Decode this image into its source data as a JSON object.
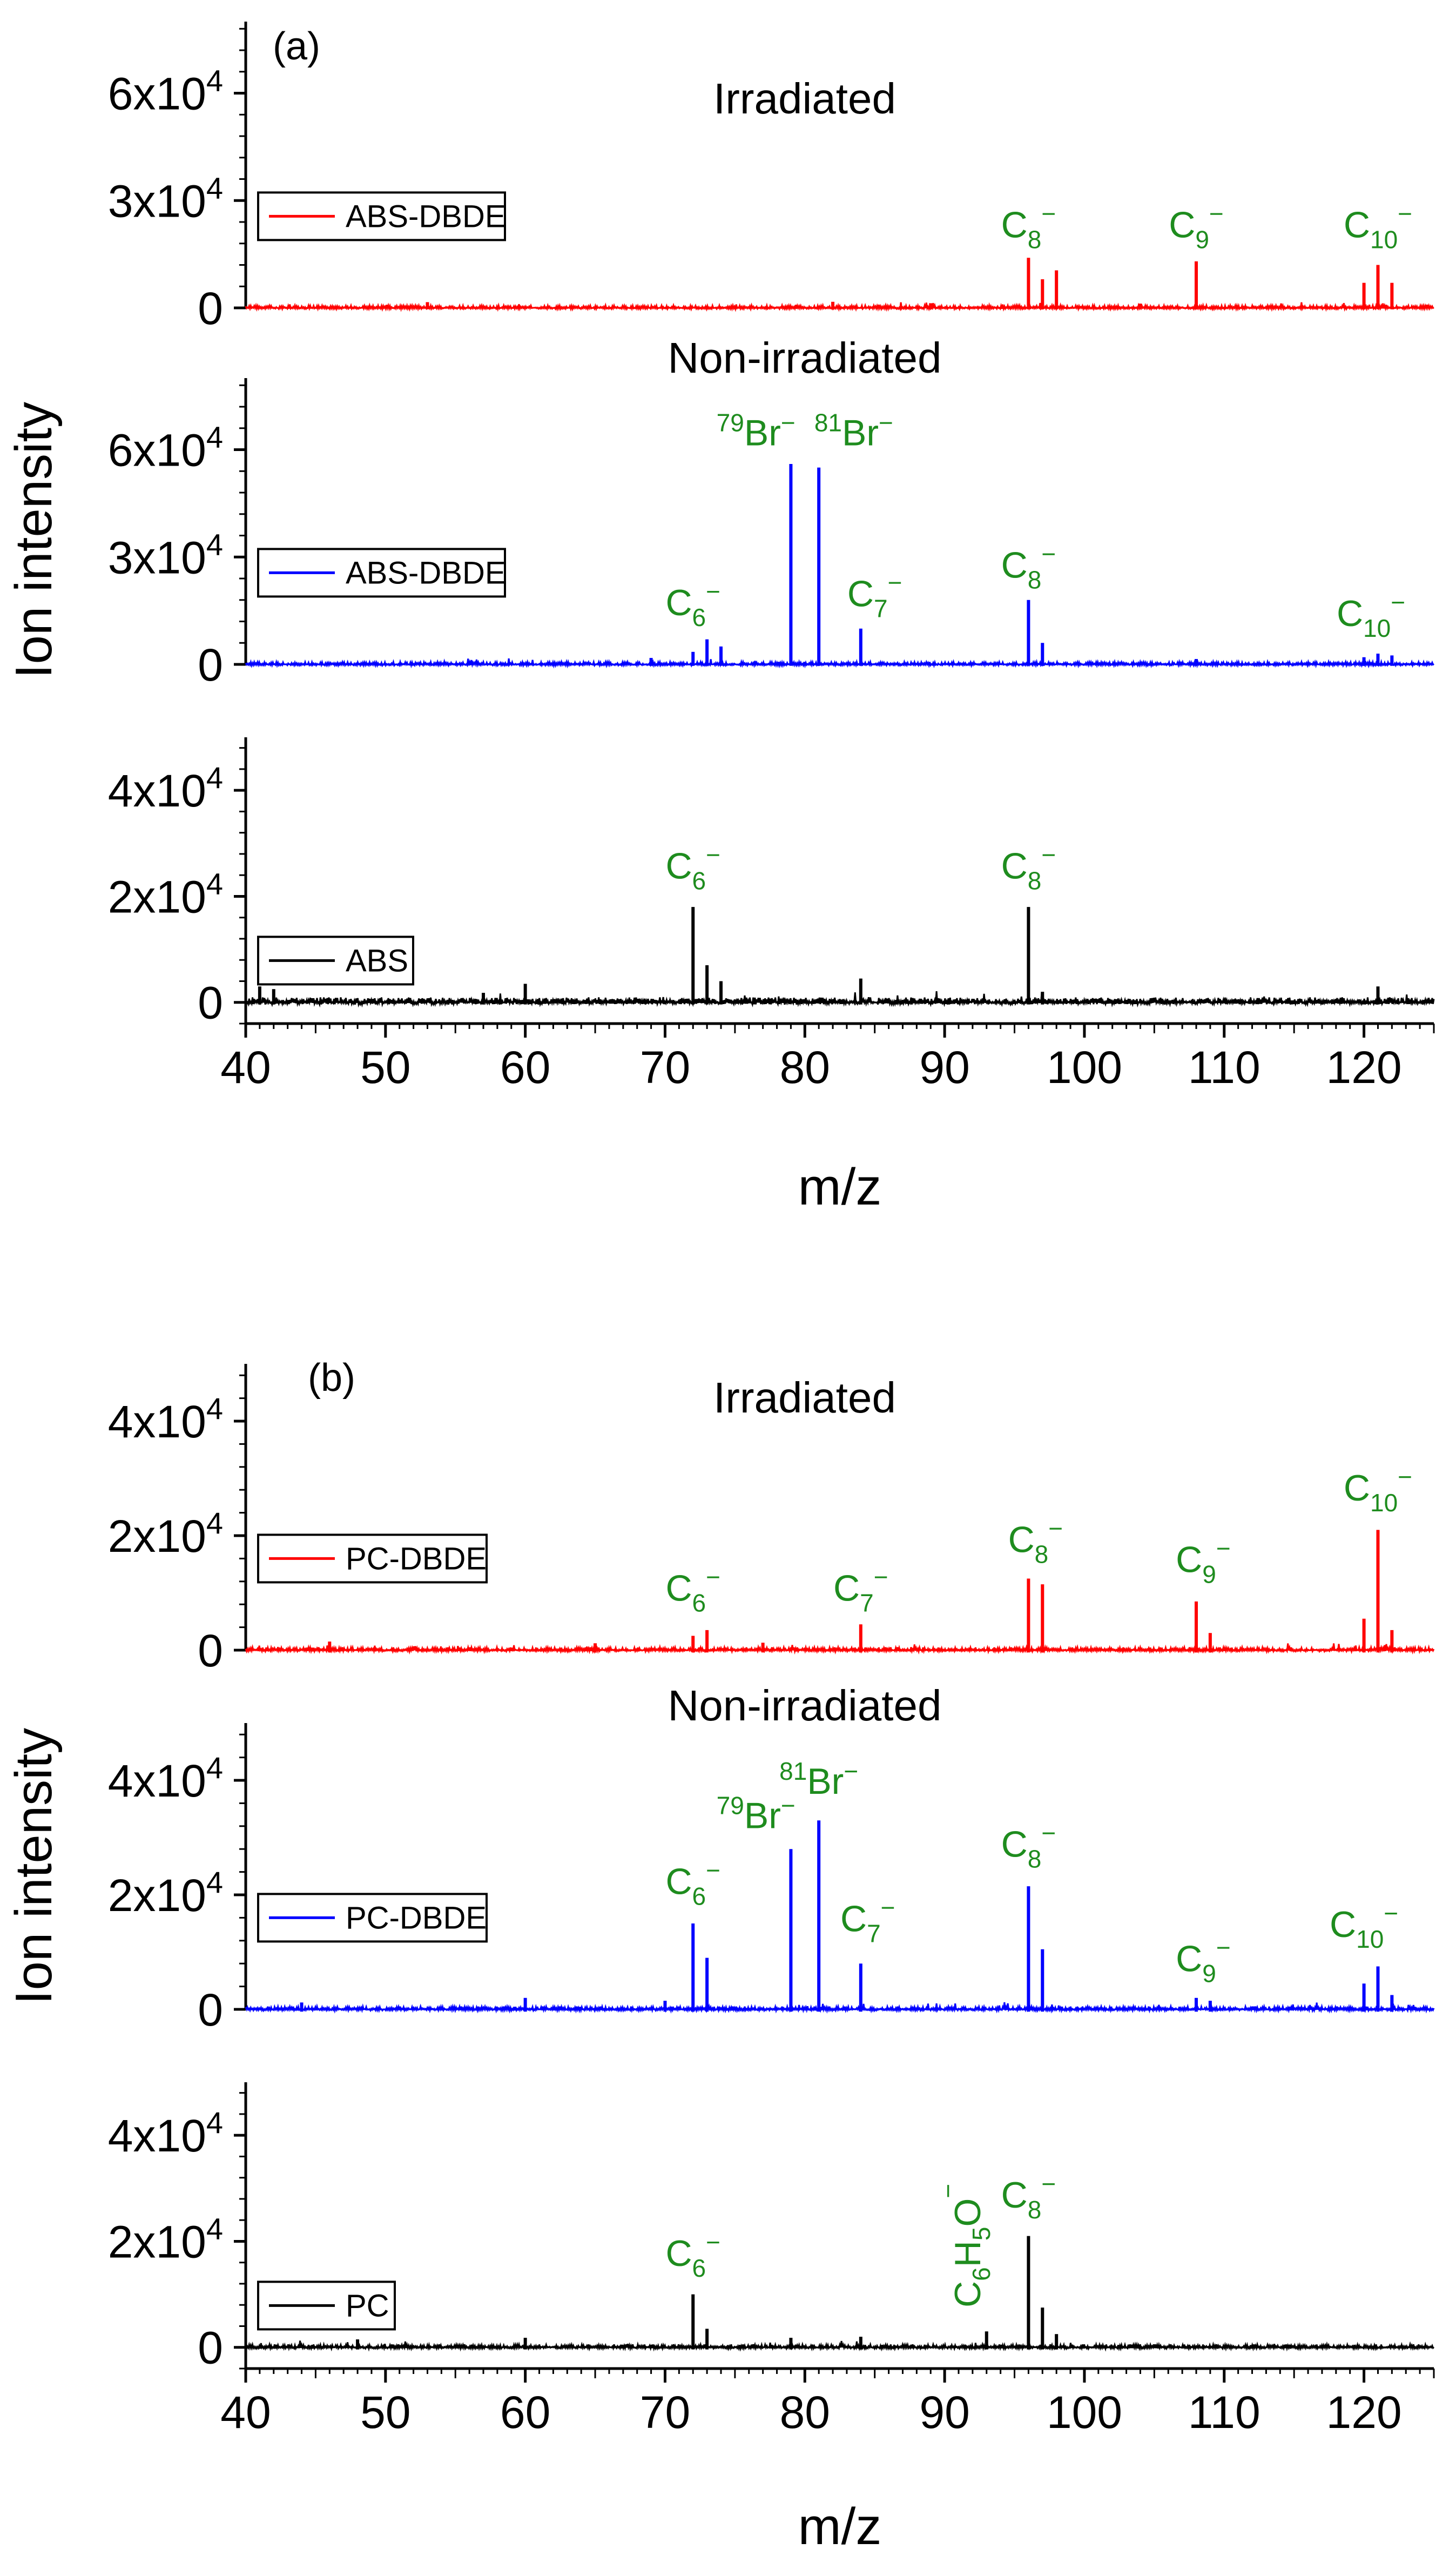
{
  "chart_data": [
    {
      "type": "line",
      "panel": "(a)",
      "xlabel": "m/z",
      "ylabel": "Ion intensity",
      "xlim": [
        40,
        125
      ],
      "xticks": [
        "40",
        "50",
        "60",
        "70",
        "80",
        "90",
        "100",
        "110",
        "120"
      ],
      "subplots": [
        {
          "title": "Irradiated",
          "legend": "ABS-DBDE",
          "color": "#ff0000",
          "ylim": [
            0,
            80000
          ],
          "yticks": [
            {
              "v": 0,
              "label": "0"
            },
            {
              "v": 30000,
              "mant": "3x10",
              "exp": "4"
            },
            {
              "v": 60000,
              "mant": "6x10",
              "exp": "4"
            }
          ],
          "noise": 2200,
          "peaks": [
            [
              96,
              14000
            ],
            [
              97,
              8000
            ],
            [
              98,
              10500
            ],
            [
              108,
              13000
            ],
            [
              120,
              7000
            ],
            [
              121,
              12000
            ],
            [
              122,
              7000
            ],
            [
              53,
              1600
            ],
            [
              82,
              1700
            ],
            [
              89,
              1300
            ],
            [
              104,
              1200
            ]
          ],
          "annotations": [
            {
              "x": 96,
              "y": 15500,
              "base": "C",
              "sub": "8",
              "sup": "−"
            },
            {
              "x": 108,
              "y": 15500,
              "base": "C",
              "sub": "9",
              "sup": "−"
            },
            {
              "x": 121,
              "y": 15500,
              "base": "C",
              "sub": "10",
              "sup": "−"
            }
          ]
        },
        {
          "title": "Non-irradiated",
          "legend": "ABS-DBDE",
          "color": "#0000ff",
          "ylim": [
            0,
            80000
          ],
          "yticks": [
            {
              "v": 0,
              "label": "0"
            },
            {
              "v": 30000,
              "mant": "3x10",
              "exp": "4"
            },
            {
              "v": 60000,
              "mant": "6x10",
              "exp": "4"
            }
          ],
          "noise": 2200,
          "peaks": [
            [
              72,
              3500
            ],
            [
              73,
              7000
            ],
            [
              74,
              5000
            ],
            [
              79,
              56000
            ],
            [
              81,
              55000
            ],
            [
              84,
              10000
            ],
            [
              96,
              18000
            ],
            [
              97,
              6000
            ],
            [
              120,
              2000
            ],
            [
              121,
              3000
            ],
            [
              122,
              2500
            ],
            [
              69,
              1800
            ],
            [
              108,
              1500
            ]
          ],
          "annotations": [
            {
              "x": 72,
              "y": 9500,
              "base": "C",
              "sub": "6",
              "sup": "−"
            },
            {
              "x": 76.5,
              "y": 57000,
              "pre": "79",
              "base": "Br",
              "sup": "−"
            },
            {
              "x": 83.5,
              "y": 57000,
              "pre": "81",
              "base": "Br",
              "sup": "−"
            },
            {
              "x": 85,
              "y": 12000,
              "base": "C",
              "sub": "7",
              "sup": "−"
            },
            {
              "x": 96,
              "y": 20000,
              "base": "C",
              "sub": "8",
              "sup": "−"
            },
            {
              "x": 120.5,
              "y": 6500,
              "base": "C",
              "sub": "10",
              "sup": "−"
            }
          ]
        },
        {
          "title": "",
          "legend": "ABS",
          "color": "#000000",
          "ylim": [
            -4000,
            50000
          ],
          "yticks": [
            {
              "v": 0,
              "label": "0"
            },
            {
              "v": 20000,
              "mant": "2x10",
              "exp": "4"
            },
            {
              "v": 40000,
              "mant": "4x10",
              "exp": "4"
            }
          ],
          "noise": 3000,
          "peaks": [
            [
              72,
              18000
            ],
            [
              73,
              7000
            ],
            [
              74,
              4000
            ],
            [
              84,
              4500
            ],
            [
              96,
              18000
            ],
            [
              97,
              2000
            ],
            [
              41,
              3000
            ],
            [
              42,
              2500
            ],
            [
              60,
              3500
            ],
            [
              121,
              3000
            ],
            [
              57,
              1800
            ]
          ],
          "annotations": [
            {
              "x": 72,
              "y": 20500,
              "base": "C",
              "sub": "6",
              "sup": "−"
            },
            {
              "x": 96,
              "y": 20500,
              "base": "C",
              "sub": "8",
              "sup": "−"
            }
          ]
        }
      ]
    },
    {
      "type": "line",
      "panel": "(b)",
      "xlabel": "m/z",
      "ylabel": "Ion intensity",
      "xlim": [
        40,
        125
      ],
      "xticks": [
        "40",
        "50",
        "60",
        "70",
        "80",
        "90",
        "100",
        "110",
        "120"
      ],
      "subplots": [
        {
          "title": "Irradiated",
          "legend": "PC-DBDE",
          "color": "#ff0000",
          "ylim": [
            0,
            50000
          ],
          "yticks": [
            {
              "v": 0,
              "label": "0"
            },
            {
              "v": 20000,
              "mant": "2x10",
              "exp": "4"
            },
            {
              "v": 40000,
              "mant": "4x10",
              "exp": "4"
            }
          ],
          "noise": 1600,
          "peaks": [
            [
              72,
              2500
            ],
            [
              73,
              3500
            ],
            [
              84,
              4500
            ],
            [
              96,
              12500
            ],
            [
              97,
              11500
            ],
            [
              108,
              8500
            ],
            [
              109,
              3000
            ],
            [
              120,
              5500
            ],
            [
              121,
              21000
            ],
            [
              122,
              3500
            ],
            [
              46,
              1500
            ],
            [
              65,
              1200
            ],
            [
              77,
              1300
            ]
          ],
          "annotations": [
            {
              "x": 72,
              "y": 6000,
              "base": "C",
              "sub": "6",
              "sup": "−"
            },
            {
              "x": 84,
              "y": 6000,
              "base": "C",
              "sub": "7",
              "sup": "−"
            },
            {
              "x": 96.5,
              "y": 14500,
              "base": "C",
              "sub": "8",
              "sup": "−"
            },
            {
              "x": 108.5,
              "y": 11000,
              "base": "C",
              "sub": "9",
              "sup": "−"
            },
            {
              "x": 121,
              "y": 23500,
              "base": "C",
              "sub": "10",
              "sup": "−"
            }
          ]
        },
        {
          "title": "Non-irradiated",
          "legend": "PC-DBDE",
          "color": "#0000ff",
          "ylim": [
            0,
            50000
          ],
          "yticks": [
            {
              "v": 0,
              "label": "0"
            },
            {
              "v": 20000,
              "mant": "2x10",
              "exp": "4"
            },
            {
              "v": 40000,
              "mant": "4x10",
              "exp": "4"
            }
          ],
          "noise": 1600,
          "peaks": [
            [
              72,
              15000
            ],
            [
              73,
              9000
            ],
            [
              79,
              28000
            ],
            [
              81,
              33000
            ],
            [
              84,
              8000
            ],
            [
              96,
              21500
            ],
            [
              97,
              10500
            ],
            [
              108,
              2000
            ],
            [
              109,
              1500
            ],
            [
              120,
              4500
            ],
            [
              121,
              7500
            ],
            [
              122,
              2500
            ],
            [
              44,
              1200
            ],
            [
              60,
              2000
            ],
            [
              70,
              1500
            ]
          ],
          "annotations": [
            {
              "x": 72,
              "y": 17500,
              "base": "C",
              "sub": "6",
              "sup": "−"
            },
            {
              "x": 76.5,
              "y": 29000,
              "pre": "79",
              "base": "Br",
              "sup": "−"
            },
            {
              "x": 81,
              "y": 35000,
              "pre": "81",
              "base": "Br",
              "sup": "−"
            },
            {
              "x": 84.5,
              "y": 11000,
              "base": "C",
              "sub": "7",
              "sup": "−"
            },
            {
              "x": 96,
              "y": 24000,
              "base": "C",
              "sub": "8",
              "sup": "−"
            },
            {
              "x": 108.5,
              "y": 4000,
              "base": "C",
              "sub": "9",
              "sup": "−"
            },
            {
              "x": 120,
              "y": 10000,
              "base": "C",
              "sub": "10",
              "sup": "−"
            }
          ]
        },
        {
          "title": "",
          "legend": "PC",
          "color": "#000000",
          "ylim": [
            -4000,
            50000
          ],
          "yticks": [
            {
              "v": 0,
              "label": "0"
            },
            {
              "v": 20000,
              "mant": "2x10",
              "exp": "4"
            },
            {
              "v": 40000,
              "mant": "4x10",
              "exp": "4"
            }
          ],
          "noise": 1800,
          "peaks": [
            [
              72,
              10000
            ],
            [
              73,
              3500
            ],
            [
              79,
              1800
            ],
            [
              84,
              2000
            ],
            [
              93,
              3000
            ],
            [
              96,
              21000
            ],
            [
              97,
              7500
            ],
            [
              98,
              2500
            ],
            [
              48,
              1500
            ],
            [
              60,
              1800
            ]
          ],
          "annotations": [
            {
              "x": 72,
              "y": 12500,
              "base": "C",
              "sub": "6",
              "sup": "−"
            },
            {
              "x": 96,
              "y": 23500,
              "base": "C",
              "sub": "8",
              "sup": "−"
            }
          ],
          "vertical_annotation": {
            "x": 93,
            "y": 6500,
            "text": "C6H5O−",
            "parts": [
              {
                "t": "C"
              },
              {
                "t": "6",
                "sub": true
              },
              {
                "t": "H"
              },
              {
                "t": "5",
                "sub": true
              },
              {
                "t": "O"
              },
              {
                "t": "−",
                "sup": true
              }
            ]
          }
        }
      ]
    }
  ]
}
